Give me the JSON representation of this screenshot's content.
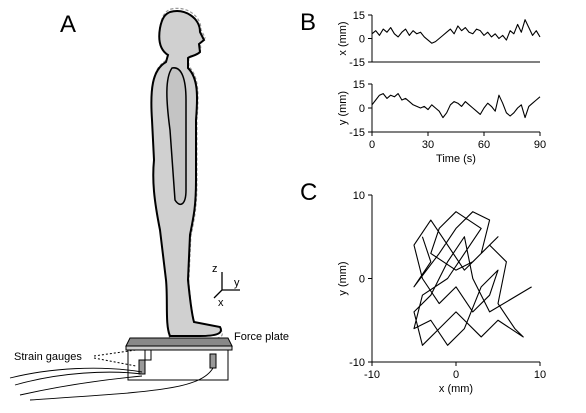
{
  "panels": [
    "A",
    "B",
    "C"
  ],
  "diagram": {
    "force_plate": "Force plate",
    "strain_gauges": "Strain gauges",
    "axis_z": "z",
    "axis_y": "y",
    "axis_x": "x"
  },
  "chart_data": [
    {
      "type": "line",
      "ylabel": "x (mm)",
      "color": "#000000",
      "x": [
        0,
        2,
        4,
        6,
        8,
        10,
        12,
        14,
        16,
        18,
        20,
        22,
        24,
        26,
        28,
        30,
        32,
        34,
        36,
        38,
        40,
        42,
        44,
        46,
        48,
        50,
        52,
        54,
        56,
        58,
        60,
        62,
        64,
        66,
        68,
        70,
        72,
        74,
        76,
        78,
        80,
        82,
        84,
        86,
        88,
        90
      ],
      "values": [
        3,
        5,
        2,
        6,
        4,
        7,
        3,
        1,
        4,
        6,
        2,
        5,
        3,
        4,
        1,
        -1,
        -3,
        -2,
        0,
        2,
        4,
        6,
        3,
        8,
        5,
        7,
        4,
        3,
        6,
        5,
        2,
        4,
        1,
        3,
        0,
        2,
        -1,
        5,
        3,
        9,
        4,
        12,
        7,
        2,
        5,
        1
      ],
      "xlim": [
        0,
        90
      ],
      "ylim": [
        -15,
        15
      ],
      "yticks": [
        -15,
        0,
        15
      ]
    },
    {
      "type": "line",
      "ylabel": "y (mm)",
      "xlabel": "Time  (s)",
      "color": "#000000",
      "x": [
        0,
        2,
        4,
        6,
        8,
        10,
        12,
        14,
        16,
        18,
        20,
        22,
        24,
        26,
        28,
        30,
        32,
        34,
        36,
        38,
        40,
        42,
        44,
        46,
        48,
        50,
        52,
        54,
        56,
        58,
        60,
        62,
        64,
        66,
        68,
        70,
        72,
        74,
        76,
        78,
        80,
        82,
        84,
        86,
        88,
        90
      ],
      "values": [
        2,
        5,
        8,
        9,
        6,
        8,
        7,
        9,
        5,
        6,
        4,
        2,
        1,
        0,
        1,
        -1,
        2,
        0,
        -2,
        -6,
        -3,
        2,
        4,
        3,
        1,
        4,
        2,
        0,
        -2,
        -4,
        0,
        3,
        1,
        -2,
        8,
        3,
        -3,
        -5,
        -3,
        0,
        2,
        -6,
        1,
        3,
        5,
        7
      ],
      "xlim": [
        0,
        90
      ],
      "ylim": [
        -15,
        15
      ],
      "xticks": [
        0,
        30,
        60,
        90
      ],
      "yticks": [
        -15,
        0,
        15
      ]
    },
    {
      "type": "line",
      "ylabel": "y (mm)",
      "xlabel": "x (mm)",
      "color": "#000000",
      "x": [
        -4,
        -3,
        -5,
        -2,
        0,
        2,
        4,
        3,
        5,
        1,
        -1,
        -3,
        -5,
        -4,
        -2,
        0,
        2,
        4,
        5,
        3,
        1,
        -1,
        -3,
        -5,
        -4,
        -1,
        1,
        3,
        0,
        -2,
        -3,
        0,
        2,
        4,
        6,
        5,
        7,
        8,
        5,
        3,
        0,
        -2,
        -4,
        -5,
        -3,
        -1,
        1,
        2,
        4,
        9
      ],
      "values": [
        5,
        2,
        -1,
        3,
        6,
        8,
        7,
        3,
        5,
        1,
        4,
        7,
        4,
        0,
        -3,
        -1,
        -4,
        -2,
        1,
        -1,
        -6,
        -8,
        -5,
        -6,
        -2,
        0,
        3,
        6,
        8,
        6,
        3,
        1,
        2,
        4,
        2,
        -3,
        -6,
        -7,
        -5,
        -7,
        -4,
        -6,
        -8,
        -4,
        -2,
        2,
        5,
        0,
        -4,
        -1
      ],
      "xlim": [
        -10,
        10
      ],
      "ylim": [
        -10,
        10
      ],
      "xticks": [
        -10,
        0,
        10
      ],
      "yticks": [
        -10,
        0,
        10
      ]
    }
  ]
}
